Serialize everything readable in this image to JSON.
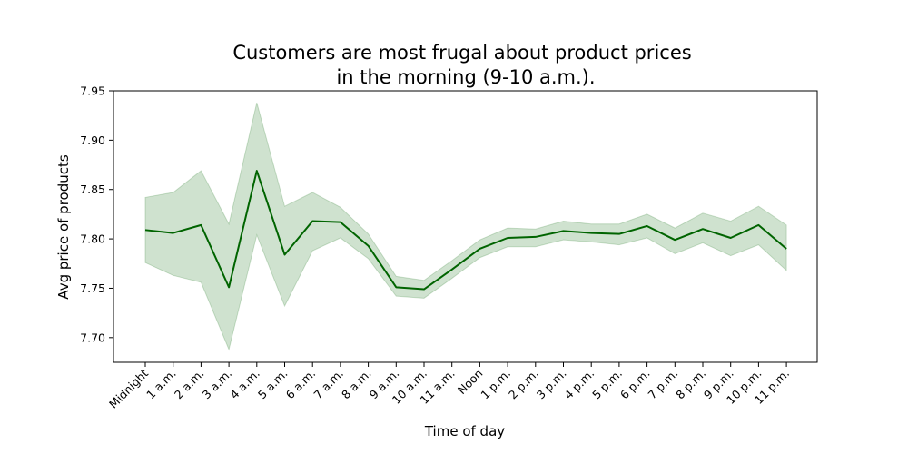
{
  "chart_data": {
    "type": "line",
    "title": [
      "Customers are most frugal about product prices",
      "in the morning (9-10 a.m.)."
    ],
    "xlabel": "Time of day",
    "ylabel": "Avg price of products",
    "categories": [
      "Midnight",
      "1 a.m.",
      "2 a.m.",
      "3 a.m.",
      "4 a.m.",
      "5 a.m.",
      "6 a.m.",
      "7 a.m.",
      "8 a.m.",
      "9 a.m.",
      "10 a.m.",
      "11 a.m.",
      "Noon",
      "1 p.m.",
      "2 p.m.",
      "3 p.m.",
      "4 p.m.",
      "5 p.m.",
      "6 p.m.",
      "7 p.m.",
      "8 p.m.",
      "9 p.m.",
      "10 p.m.",
      "11 p.m."
    ],
    "series": [
      {
        "values": [
          7.809,
          7.806,
          7.814,
          7.751,
          7.869,
          7.784,
          7.818,
          7.817,
          7.793,
          7.751,
          7.749,
          7.769,
          7.79,
          7.801,
          7.802,
          7.808,
          7.806,
          7.805,
          7.813,
          7.799,
          7.81,
          7.801,
          7.814,
          7.79
        ],
        "ci_lower": [
          7.776,
          7.763,
          7.756,
          7.688,
          7.804,
          7.732,
          7.788,
          7.801,
          7.78,
          7.742,
          7.74,
          7.76,
          7.781,
          7.792,
          7.792,
          7.799,
          7.797,
          7.794,
          7.801,
          7.785,
          7.796,
          7.783,
          7.794,
          7.768
        ],
        "ci_upper": [
          7.842,
          7.847,
          7.869,
          7.815,
          7.938,
          7.833,
          7.847,
          7.832,
          7.805,
          7.762,
          7.758,
          7.778,
          7.799,
          7.811,
          7.81,
          7.818,
          7.815,
          7.815,
          7.825,
          7.811,
          7.826,
          7.818,
          7.833,
          7.814
        ]
      }
    ],
    "ylim": [
      7.675,
      7.95
    ],
    "yticks": [
      "7.70",
      "7.75",
      "7.80",
      "7.85",
      "7.90",
      "7.95"
    ],
    "grid": false,
    "colors": {
      "line": "#006400",
      "band": "#006400",
      "axis": "#000000"
    }
  }
}
